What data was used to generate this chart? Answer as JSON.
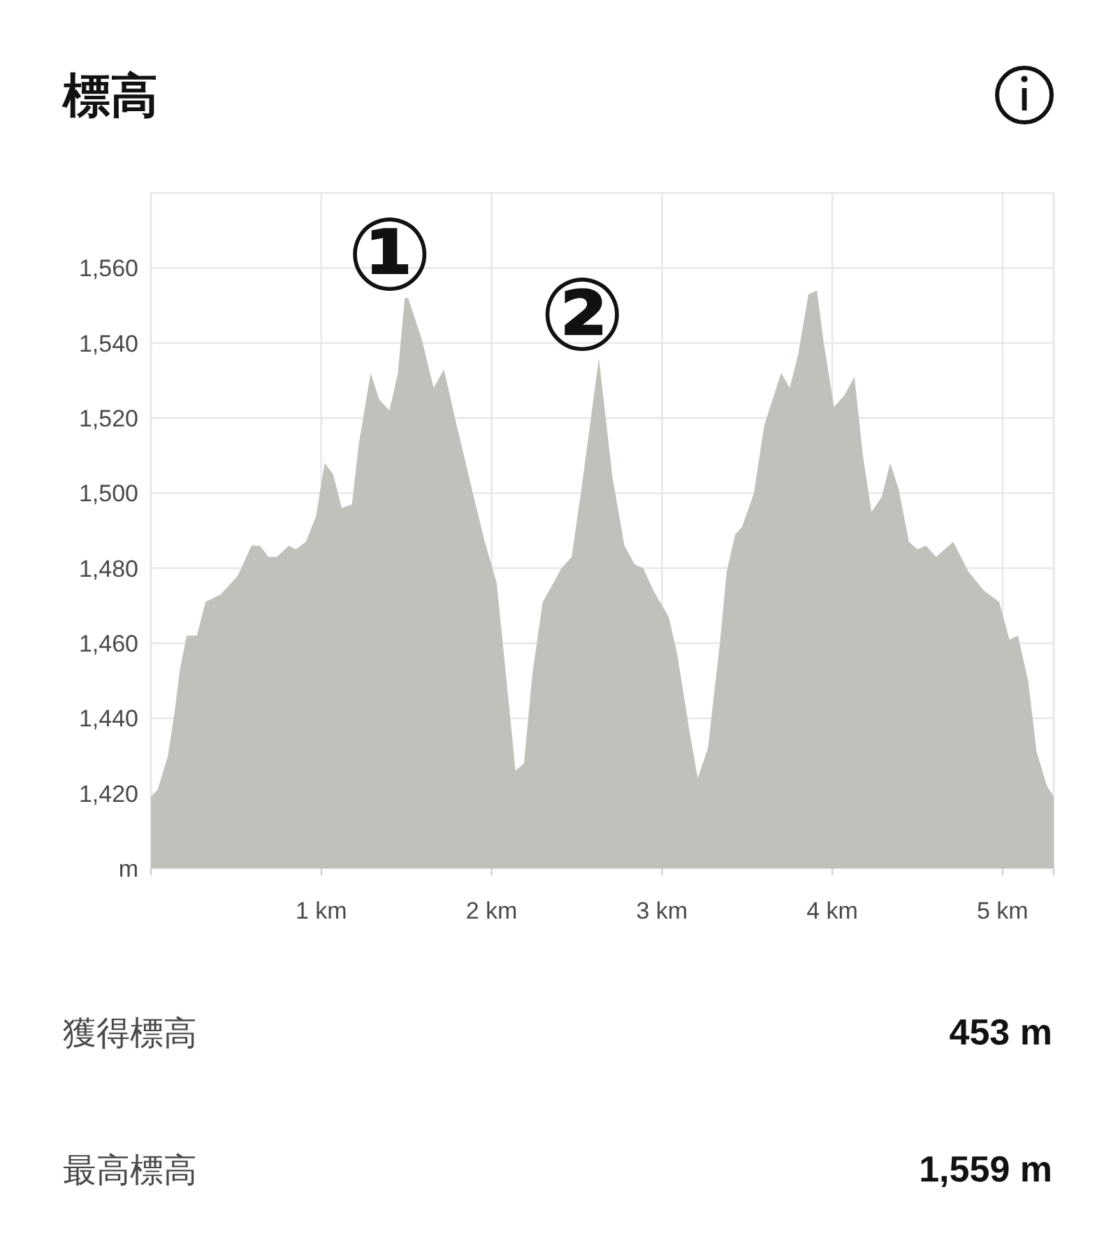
{
  "chart_data": {
    "type": "area",
    "title": "標高",
    "x": [
      0,
      0.04,
      0.1,
      0.14,
      0.17,
      0.21,
      0.27,
      0.32,
      0.41,
      0.51,
      0.59,
      0.64,
      0.69,
      0.74,
      0.81,
      0.85,
      0.91,
      0.97,
      1.02,
      1.07,
      1.12,
      1.18,
      1.22,
      1.29,
      1.34,
      1.4,
      1.45,
      1.49,
      1.51,
      1.59,
      1.66,
      1.72,
      1.79,
      1.89,
      1.96,
      2.03,
      2.07,
      2.11,
      2.14,
      2.19,
      2.24,
      2.3,
      2.35,
      2.41,
      2.47,
      2.53,
      2.63,
      2.71,
      2.78,
      2.84,
      2.89,
      2.95,
      3.04,
      3.09,
      3.16,
      3.21,
      3.27,
      3.34,
      3.38,
      3.43,
      3.47,
      3.54,
      3.6,
      3.7,
      3.75,
      3.8,
      3.86,
      3.91,
      3.95,
      4.01,
      4.07,
      4.13,
      4.18,
      4.23,
      4.29,
      4.34,
      4.39,
      4.45,
      4.5,
      4.55,
      4.61,
      4.71,
      4.8,
      4.89,
      4.98,
      5.04,
      5.09,
      5.15,
      5.2,
      5.26,
      5.3
    ],
    "series": [
      {
        "color": "#c1c0bb",
        "values": [
          1419,
          1421,
          1430,
          1442,
          1453,
          1462,
          1462,
          1471,
          1473,
          1478,
          1486,
          1486,
          1483,
          1483,
          1486,
          1485,
          1487,
          1494,
          1508,
          1505,
          1496,
          1497,
          1513,
          1532,
          1525,
          1522,
          1532,
          1552,
          1552,
          1541,
          1528,
          1533,
          1519,
          1500,
          1487,
          1476,
          1458,
          1440,
          1426,
          1428,
          1452,
          1471,
          1475,
          1480,
          1483,
          1502,
          1536,
          1504,
          1486,
          1481,
          1480,
          1474,
          1467,
          1457,
          1437,
          1424,
          1432,
          1460,
          1479,
          1489,
          1491,
          1500,
          1518,
          1532,
          1528,
          1537,
          1553,
          1554,
          1540,
          1523,
          1526,
          1531,
          1510,
          1495,
          1499,
          1508,
          1501,
          1487,
          1485,
          1486,
          1483,
          1487,
          1479,
          1474,
          1471,
          1461,
          1462,
          1450,
          1431,
          1422,
          1419
        ]
      }
    ],
    "xlim": [
      0,
      5.3
    ],
    "ylim": [
      1400,
      1580
    ],
    "xticks": [
      {
        "value": 0,
        "label": null
      },
      {
        "value": 1,
        "label": "1 km"
      },
      {
        "value": 2,
        "label": "2 km"
      },
      {
        "value": 3,
        "label": "3 km"
      },
      {
        "value": 4,
        "label": "4 km"
      },
      {
        "value": 5,
        "label": "5 km"
      },
      {
        "value": 5.3,
        "label": null
      }
    ],
    "yticks": [
      {
        "value": 1400,
        "label": "m"
      },
      {
        "value": 1420,
        "label": "1,420"
      },
      {
        "value": 1440,
        "label": "1,440"
      },
      {
        "value": 1460,
        "label": "1,460"
      },
      {
        "value": 1480,
        "label": "1,480"
      },
      {
        "value": 1500,
        "label": "1,500"
      },
      {
        "value": 1520,
        "label": "1,520"
      },
      {
        "value": 1540,
        "label": "1,540"
      },
      {
        "value": 1560,
        "label": "1,560"
      }
    ],
    "grid": true,
    "annotations": [
      {
        "text": "①",
        "x": 1.5,
        "y": 1552
      },
      {
        "text": "②",
        "x": 2.63,
        "y": 1536
      },
      "獲得標高",
      "453 m",
      "最高標高",
      "1,559 m"
    ]
  }
}
